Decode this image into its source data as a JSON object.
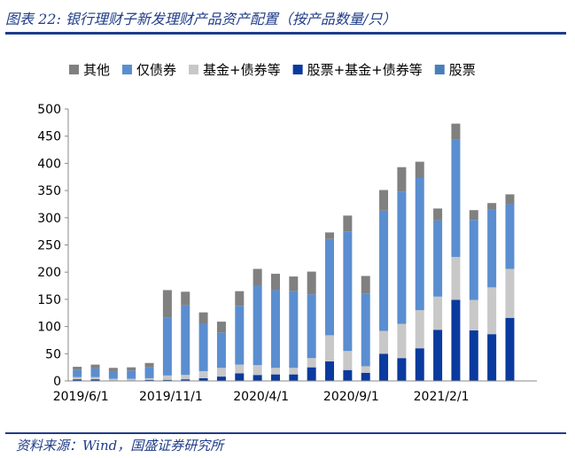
{
  "header": {
    "title": "图表 22:  银行理财子新发理财产品资产配置（按产品数量/只）"
  },
  "footer": {
    "source": "资料来源：Wind，国盛证券研究所"
  },
  "chart_data": {
    "type": "bar",
    "stacked": true,
    "ylim": [
      0,
      500
    ],
    "yticks": [
      0,
      50,
      100,
      150,
      200,
      250,
      300,
      350,
      400,
      450,
      500
    ],
    "x_tick_labels": [
      "2019/6/1",
      "2019/11/1",
      "2020/4/1",
      "2020/9/1",
      "2021/2/1"
    ],
    "x_tick_index": [
      0,
      5,
      10,
      15,
      20
    ],
    "categories": [
      "2019/6/1",
      "2019/7/1",
      "2019/8/1",
      "2019/9/1",
      "2019/10/1",
      "2019/11/1",
      "2019/12/1",
      "2020/1/1",
      "2020/2/1",
      "2020/3/1",
      "2020/4/1",
      "2020/5/1",
      "2020/6/1",
      "2020/7/1",
      "2020/8/1",
      "2020/9/1",
      "2020/10/1",
      "2020/11/1",
      "2020/12/1",
      "2021/1/1",
      "2021/2/1",
      "2021/3/1",
      "2021/4/1",
      "2021/5/1",
      "2021/6/1",
      "2021/7/1"
    ],
    "legend_position": "top",
    "grid": false,
    "series": [
      {
        "name": "股票",
        "color": "#4a7ebb",
        "values": [
          0,
          0,
          0,
          0,
          0,
          0,
          0,
          0,
          0,
          0,
          0,
          0,
          0,
          0,
          0,
          0,
          0,
          0,
          0,
          0,
          0,
          0,
          0,
          0,
          0,
          0
        ]
      },
      {
        "name": "股票+基金+债券等",
        "color": "#0a3a9e",
        "values": [
          3,
          3,
          1,
          1,
          2,
          2,
          3,
          5,
          8,
          14,
          11,
          12,
          12,
          25,
          36,
          20,
          15,
          50,
          42,
          60,
          94,
          149,
          93,
          86,
          116,
          0
        ]
      },
      {
        "name": "基金+债券等",
        "color": "#c8c8c8",
        "values": [
          4,
          4,
          3,
          3,
          3,
          8,
          8,
          13,
          16,
          16,
          18,
          12,
          12,
          17,
          48,
          35,
          12,
          42,
          63,
          70,
          61,
          79,
          56,
          86,
          90,
          0
        ]
      },
      {
        "name": "仅债券",
        "color": "#5a8ed0",
        "values": [
          13,
          16,
          14,
          15,
          20,
          106,
          128,
          87,
          65,
          108,
          146,
          143,
          141,
          117,
          177,
          220,
          133,
          221,
          243,
          243,
          140,
          216,
          147,
          143,
          119,
          0
        ]
      },
      {
        "name": "其他",
        "color": "#808080",
        "values": [
          6,
          7,
          6,
          6,
          8,
          51,
          25,
          21,
          20,
          27,
          31,
          30,
          27,
          42,
          12,
          29,
          33,
          38,
          45,
          30,
          22,
          29,
          18,
          12,
          18,
          0
        ]
      }
    ]
  }
}
